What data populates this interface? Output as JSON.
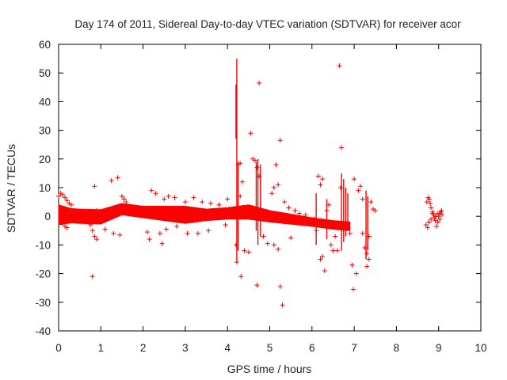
{
  "chart_data": {
    "type": "scatter",
    "title": "Day 174 of 2011, Sidereal Day-to-day VTEC variation (SDTVAR) for receiver acor",
    "xlabel": "GPS time / hours",
    "ylabel": "SDTVAR / TECUs",
    "xlim": [
      0,
      10
    ],
    "ylim": [
      -40,
      60
    ],
    "xticks": [
      0,
      1,
      2,
      3,
      4,
      5,
      6,
      7,
      8,
      9,
      10
    ],
    "yticks": [
      -40,
      -30,
      -20,
      -10,
      0,
      10,
      20,
      30,
      40,
      50,
      60
    ],
    "grid": false,
    "marker": "+",
    "color": "#ff0000",
    "series_name": "SDTVAR",
    "dense_band": {
      "center": [
        [
          0,
          0.5
        ],
        [
          0.5,
          0.0
        ],
        [
          1.0,
          -0.2
        ],
        [
          1.5,
          2.5
        ],
        [
          2.0,
          1.5
        ],
        [
          2.5,
          1.0
        ],
        [
          3.0,
          0.5
        ],
        [
          3.5,
          0.5
        ],
        [
          4.0,
          1.0
        ],
        [
          4.5,
          1.5
        ],
        [
          5.0,
          0.0
        ],
        [
          5.5,
          -1.0
        ],
        [
          6.0,
          -2.0
        ],
        [
          6.5,
          -3.0
        ],
        [
          6.9,
          -3.5
        ]
      ],
      "half_width": [
        [
          0,
          3.5
        ],
        [
          0.3,
          2.5
        ],
        [
          1.0,
          2.5
        ],
        [
          1.5,
          2.0
        ],
        [
          2.0,
          2.0
        ],
        [
          2.5,
          2.5
        ],
        [
          3.0,
          3.0
        ],
        [
          3.5,
          2.0
        ],
        [
          4.0,
          2.0
        ],
        [
          4.5,
          2.5
        ],
        [
          5.0,
          2.0
        ],
        [
          6.0,
          1.5
        ],
        [
          6.9,
          1.5
        ]
      ]
    },
    "points": [
      [
        0.0,
        7.0
      ],
      [
        0.05,
        8.0
      ],
      [
        0.1,
        7.5
      ],
      [
        0.15,
        6.5
      ],
      [
        0.2,
        5.5
      ],
      [
        0.25,
        4.5
      ],
      [
        0.3,
        4.0
      ],
      [
        0.1,
        -2.5
      ],
      [
        0.15,
        -3.5
      ],
      [
        0.2,
        -4.0
      ],
      [
        0.8,
        -21.0
      ],
      [
        0.85,
        10.5
      ],
      [
        0.8,
        -5.0
      ],
      [
        0.85,
        -7.0
      ],
      [
        0.9,
        -8.0
      ],
      [
        0.75,
        -3.0
      ],
      [
        0.9,
        2.0
      ],
      [
        1.25,
        12.5
      ],
      [
        1.4,
        13.5
      ],
      [
        1.1,
        -4.5
      ],
      [
        1.3,
        -6.0
      ],
      [
        1.45,
        -6.5
      ],
      [
        1.5,
        7.0
      ],
      [
        1.55,
        6.0
      ],
      [
        1.6,
        5.0
      ],
      [
        2.2,
        9.0
      ],
      [
        2.3,
        8.0
      ],
      [
        2.1,
        -5.5
      ],
      [
        2.15,
        -8.0
      ],
      [
        2.45,
        -9.5
      ],
      [
        2.6,
        7.0
      ],
      [
        2.5,
        6.0
      ],
      [
        2.75,
        6.5
      ],
      [
        2.4,
        -6.0
      ],
      [
        2.55,
        -4.5
      ],
      [
        2.8,
        -3.5
      ],
      [
        3.0,
        5.0
      ],
      [
        3.2,
        6.5
      ],
      [
        3.4,
        5.0
      ],
      [
        3.6,
        4.5
      ],
      [
        3.8,
        4.0
      ],
      [
        3.05,
        -6.0
      ],
      [
        3.3,
        -6.0
      ],
      [
        3.55,
        -5.0
      ],
      [
        4.0,
        6.0
      ],
      [
        4.05,
        2.5
      ],
      [
        3.95,
        -3.0
      ],
      [
        4.2,
        -10.0
      ],
      [
        4.22,
        -16.0
      ],
      [
        4.25,
        18.0
      ],
      [
        4.3,
        18.5
      ],
      [
        4.35,
        12.0
      ],
      [
        4.3,
        7.0
      ],
      [
        4.32,
        -21.0
      ],
      [
        4.4,
        -12.0
      ],
      [
        4.5,
        -12.5
      ],
      [
        4.55,
        29.0
      ],
      [
        4.6,
        20.0
      ],
      [
        4.65,
        19.5
      ],
      [
        4.7,
        17.0
      ],
      [
        4.75,
        14.0
      ],
      [
        4.75,
        46.5
      ],
      [
        4.7,
        -24.0
      ],
      [
        4.85,
        -7.0
      ],
      [
        4.95,
        -9.5
      ],
      [
        5.05,
        8.0
      ],
      [
        5.1,
        10.0
      ],
      [
        5.15,
        18.0
      ],
      [
        5.2,
        11.0
      ],
      [
        5.25,
        26.5
      ],
      [
        5.25,
        -24.5
      ],
      [
        5.3,
        -31.0
      ],
      [
        5.2,
        -11.5
      ],
      [
        5.1,
        -10.0
      ],
      [
        5.35,
        5.0
      ],
      [
        5.45,
        3.0
      ],
      [
        5.5,
        -7.5
      ],
      [
        5.6,
        2.0
      ],
      [
        5.7,
        1.0
      ],
      [
        5.85,
        0.5
      ],
      [
        6.05,
        -1.0
      ],
      [
        6.1,
        -5.0
      ],
      [
        6.15,
        14.0
      ],
      [
        6.2,
        11.0
      ],
      [
        6.25,
        13.0
      ],
      [
        6.2,
        -15.0
      ],
      [
        6.25,
        -14.0
      ],
      [
        6.3,
        -19.0
      ],
      [
        6.35,
        2.0
      ],
      [
        6.4,
        4.0
      ],
      [
        6.45,
        -10.0
      ],
      [
        6.5,
        -12.0
      ],
      [
        6.55,
        -7.0
      ],
      [
        6.6,
        -12.0
      ],
      [
        6.65,
        52.5
      ],
      [
        6.7,
        24.0
      ],
      [
        6.68,
        10.0
      ],
      [
        6.9,
        -6.0
      ],
      [
        6.95,
        -17.0
      ],
      [
        6.98,
        -25.5
      ],
      [
        7.05,
        -20.0
      ],
      [
        7.0,
        13.0
      ],
      [
        7.1,
        9.0
      ],
      [
        7.15,
        10.5
      ],
      [
        7.2,
        6.0
      ],
      [
        7.25,
        -11.0
      ],
      [
        7.3,
        -13.0
      ],
      [
        7.35,
        -15.0
      ],
      [
        7.3,
        -17.5
      ],
      [
        7.4,
        5.0
      ],
      [
        7.45,
        2.5
      ],
      [
        7.5,
        2.0
      ],
      [
        7.2,
        -6.0
      ],
      [
        7.35,
        -7.0
      ],
      [
        8.72,
        5.0
      ],
      [
        8.75,
        6.5
      ],
      [
        8.78,
        6.0
      ],
      [
        8.8,
        4.5
      ],
      [
        8.82,
        3.0
      ],
      [
        8.85,
        1.0
      ],
      [
        8.88,
        0.5
      ],
      [
        8.9,
        -0.5
      ],
      [
        8.92,
        -1.5
      ],
      [
        8.95,
        -3.5
      ],
      [
        8.98,
        -2.0
      ],
      [
        9.0,
        0.0
      ],
      [
        9.02,
        1.0
      ],
      [
        9.05,
        1.5
      ],
      [
        9.08,
        0.5
      ],
      [
        8.7,
        -3.0
      ],
      [
        8.74,
        -4.0
      ],
      [
        8.77,
        -2.0
      ],
      [
        8.82,
        -1.0
      ],
      [
        8.86,
        1.5
      ],
      [
        8.93,
        0.0
      ],
      [
        8.97,
        1.0
      ],
      [
        9.03,
        -1.0
      ],
      [
        9.07,
        2.0
      ]
    ],
    "spikes": [
      {
        "x": 4.22,
        "ymin": -16,
        "ymax": 55
      },
      {
        "x": 4.2,
        "ymin": 27,
        "ymax": 46
      },
      {
        "x": 4.68,
        "ymin": -5,
        "ymax": 19
      },
      {
        "x": 4.72,
        "ymin": -10,
        "ymax": 20
      },
      {
        "x": 4.78,
        "ymin": -7,
        "ymax": 18
      },
      {
        "x": 4.25,
        "ymin": -12,
        "ymax": 19
      },
      {
        "x": 6.7,
        "ymin": -12,
        "ymax": 15
      },
      {
        "x": 6.75,
        "ymin": -9,
        "ymax": 13
      },
      {
        "x": 6.8,
        "ymin": -7,
        "ymax": 10
      },
      {
        "x": 6.85,
        "ymin": -5,
        "ymax": 8
      },
      {
        "x": 7.28,
        "ymin": -15,
        "ymax": 9
      },
      {
        "x": 7.32,
        "ymin": -12,
        "ymax": 7
      },
      {
        "x": 6.1,
        "ymin": -10,
        "ymax": 8
      },
      {
        "x": 6.35,
        "ymin": -8,
        "ymax": 6
      }
    ]
  }
}
